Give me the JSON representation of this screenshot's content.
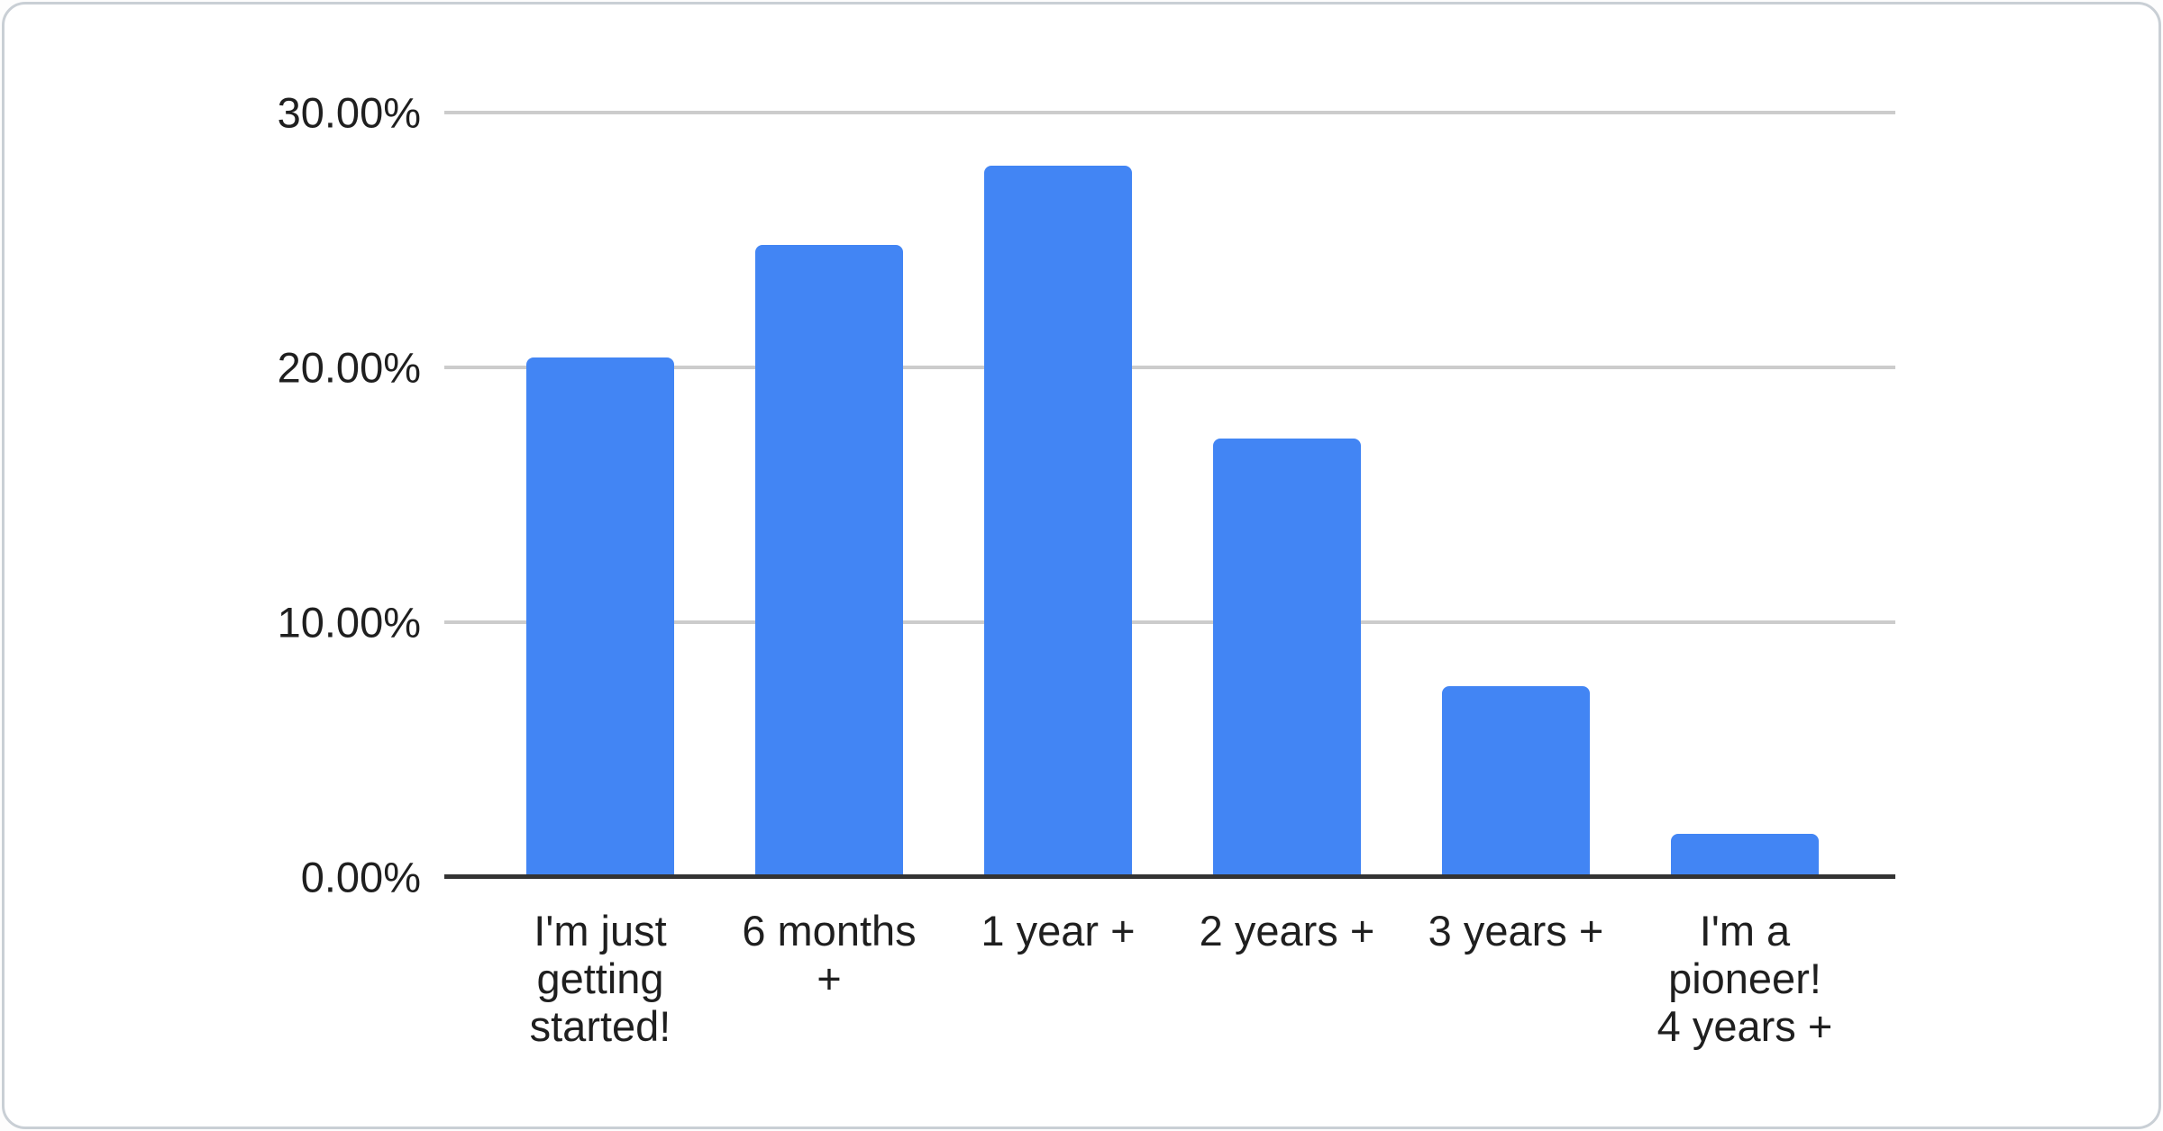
{
  "chart_data": {
    "type": "bar",
    "title": "",
    "xlabel": "",
    "ylabel": "",
    "categories": [
      "I'm just getting started!",
      "6 months +",
      "1 year +",
      "2 years +",
      "3 years +",
      "I'm a pioneer! 4 years +"
    ],
    "x_tick_display": [
      "I'm just\ngetting\nstarted!",
      "6 months\n+",
      "1 year +",
      "2 years +",
      "3 years +",
      "I'm a\npioneer!\n4 years +"
    ],
    "values": [
      20.4,
      24.8,
      27.9,
      17.2,
      7.5,
      1.7
    ],
    "value_unit": "%",
    "ylim": [
      0,
      30
    ],
    "y_ticks": [
      "30.00%",
      "20.00%",
      "10.00%",
      "0.00%"
    ],
    "y_tick_values": [
      30,
      20,
      10,
      0
    ],
    "grid": "horizontal",
    "legend_position": "none",
    "bar_color": "#4285f4",
    "gridline_color": "#cccccc",
    "axis_line_color": "#333333",
    "text_color": "#1f1f1f"
  }
}
